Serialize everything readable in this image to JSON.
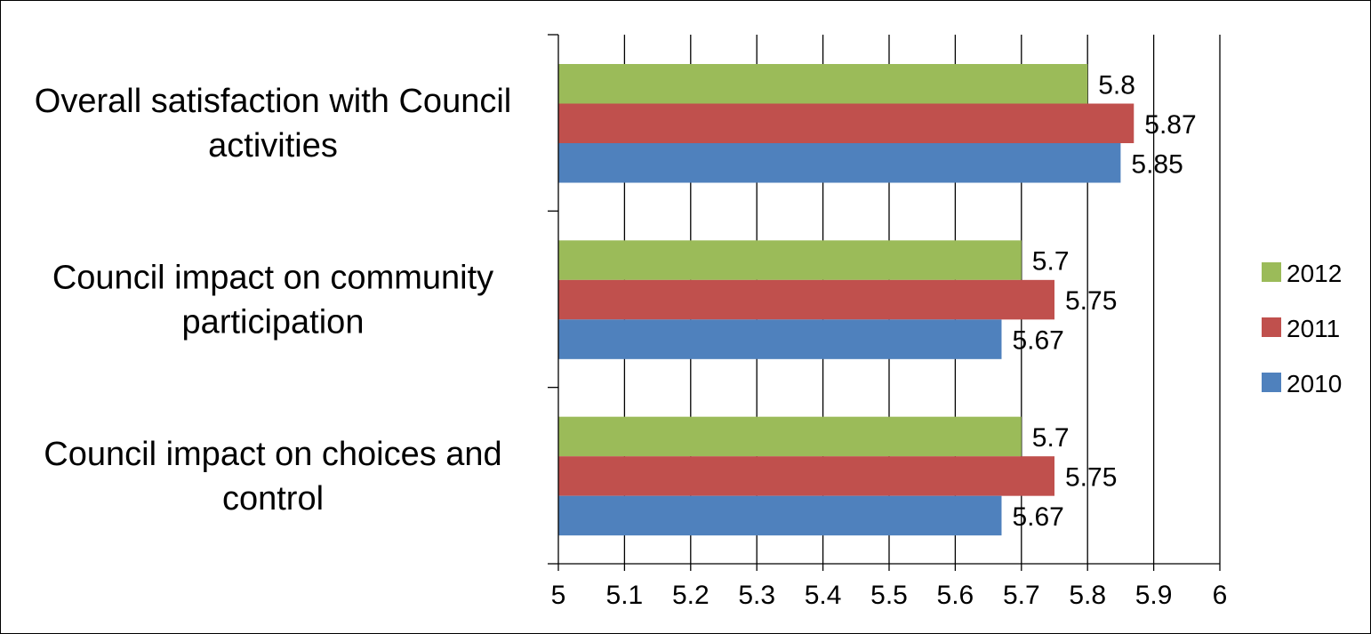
{
  "chart_data": {
    "type": "bar",
    "orientation": "horizontal",
    "categories": [
      "Overall satisfaction with Council activities",
      "Council impact on community participation",
      "Council impact on choices and control"
    ],
    "category_lines": [
      [
        "Overall satisfaction with Council",
        "activities"
      ],
      [
        "Council impact on community",
        "participation"
      ],
      [
        "Council impact on choices and",
        "control"
      ]
    ],
    "series": [
      {
        "name": "2012",
        "color": "#9bbb59",
        "values": [
          5.8,
          5.7,
          5.7
        ],
        "labels": [
          "5.8",
          "5.7",
          "5.7"
        ]
      },
      {
        "name": "2011",
        "color": "#c0504d",
        "values": [
          5.87,
          5.75,
          5.75
        ],
        "labels": [
          "5.87",
          "5.75",
          "5.75"
        ]
      },
      {
        "name": "2010",
        "color": "#4f81bd",
        "values": [
          5.85,
          5.67,
          5.67
        ],
        "labels": [
          "5.85",
          "5.67",
          "5.67"
        ]
      }
    ],
    "xlim": [
      5,
      6
    ],
    "x_ticks": [
      "5",
      "5.1",
      "5.2",
      "5.3",
      "5.4",
      "5.5",
      "5.6",
      "5.7",
      "5.8",
      "5.9",
      "6"
    ],
    "grid": true,
    "legend_position": "right",
    "title": "",
    "xlabel": "",
    "ylabel": ""
  }
}
